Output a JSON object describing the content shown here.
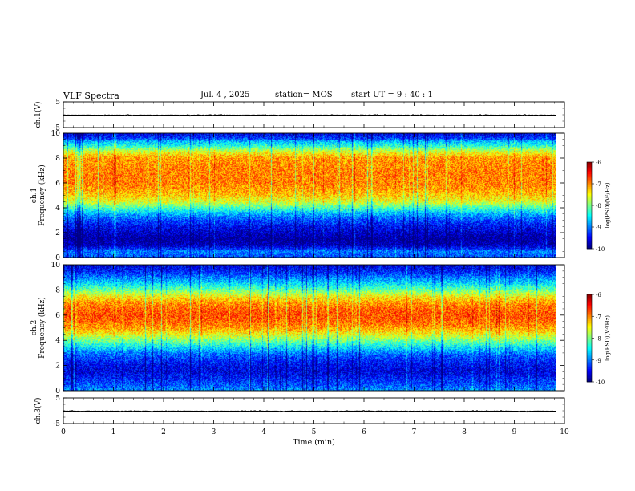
{
  "header": {
    "title": "VLF Spectra",
    "date": "Jul. 4 , 2025",
    "station": "station= MOS",
    "start": "start UT =  9 : 40 : 1"
  },
  "chart_data": [
    {
      "type": "line",
      "name": "ch1-voltage",
      "ylabel": "ch.1(V)",
      "ylim": [
        -5,
        5
      ],
      "yticks": [
        5,
        -5
      ],
      "baseline_value": -0.2,
      "x_extent": [
        0,
        9.83
      ],
      "xlim": [
        0,
        10
      ]
    },
    {
      "type": "heatmap",
      "name": "ch1-spectrogram",
      "ylabel": "ch.1\nFrequency (kHz)",
      "ylim": [
        0,
        10
      ],
      "yticks": [
        0,
        2,
        4,
        6,
        8,
        10
      ],
      "xlim": [
        0,
        10
      ],
      "x_extent": [
        0,
        9.83
      ],
      "profile": {
        "freq_khz": [
          0,
          0.5,
          1,
          1.5,
          2,
          2.5,
          3,
          3.5,
          4,
          4.5,
          5,
          5.5,
          6,
          7,
          8,
          8.5,
          9,
          9.3,
          9.6,
          10
        ],
        "level": [
          -9.2,
          -9.0,
          -9.8,
          -9.9,
          -9.7,
          -9.5,
          -9.2,
          -8.8,
          -8.2,
          -7.6,
          -7.3,
          -7.1,
          -7.0,
          -7.0,
          -7.1,
          -7.6,
          -8.4,
          -8.7,
          -9.3,
          -9.6
        ]
      },
      "colorbar": {
        "label": "log(PSD)(V²/Hz)",
        "min": -10,
        "max": -6,
        "ticks": [
          -6,
          -7,
          -8,
          -9,
          -10
        ]
      }
    },
    {
      "type": "heatmap",
      "name": "ch2-spectrogram",
      "ylabel": "ch.2\nFrequency (kHz)",
      "ylim": [
        0,
        10
      ],
      "yticks": [
        0,
        2,
        4,
        6,
        8,
        10
      ],
      "xlim": [
        0,
        10
      ],
      "x_extent": [
        0,
        9.83
      ],
      "profile": {
        "freq_khz": [
          0,
          0.5,
          1,
          1.5,
          2,
          2.5,
          3,
          3.5,
          4,
          4.5,
          5,
          5.5,
          6,
          6.5,
          7,
          7.5,
          8,
          8.5,
          9,
          9.5,
          10
        ],
        "level": [
          -8.9,
          -9.2,
          -9.4,
          -9.6,
          -9.5,
          -9.3,
          -9.0,
          -8.5,
          -8.0,
          -7.5,
          -7.1,
          -6.9,
          -6.8,
          -6.9,
          -7.1,
          -7.5,
          -8.1,
          -8.6,
          -9.0,
          -9.4,
          -9.6
        ]
      },
      "colorbar": {
        "label": "log(PSD)(V²/Hz)",
        "min": -10,
        "max": -6,
        "ticks": [
          -6,
          -7,
          -8,
          -9,
          -10
        ]
      }
    },
    {
      "type": "line",
      "name": "ch3-voltage",
      "ylabel": "ch.3(V)",
      "ylim": [
        -5,
        5
      ],
      "yticks": [
        5,
        -5
      ],
      "baseline_value": -0.2,
      "x_extent": [
        0,
        9.83
      ],
      "xlim": [
        0,
        10
      ],
      "xlabel": "Time (min)",
      "xticks": [
        0,
        1,
        2,
        3,
        4,
        5,
        6,
        7,
        8,
        9,
        10
      ]
    }
  ]
}
